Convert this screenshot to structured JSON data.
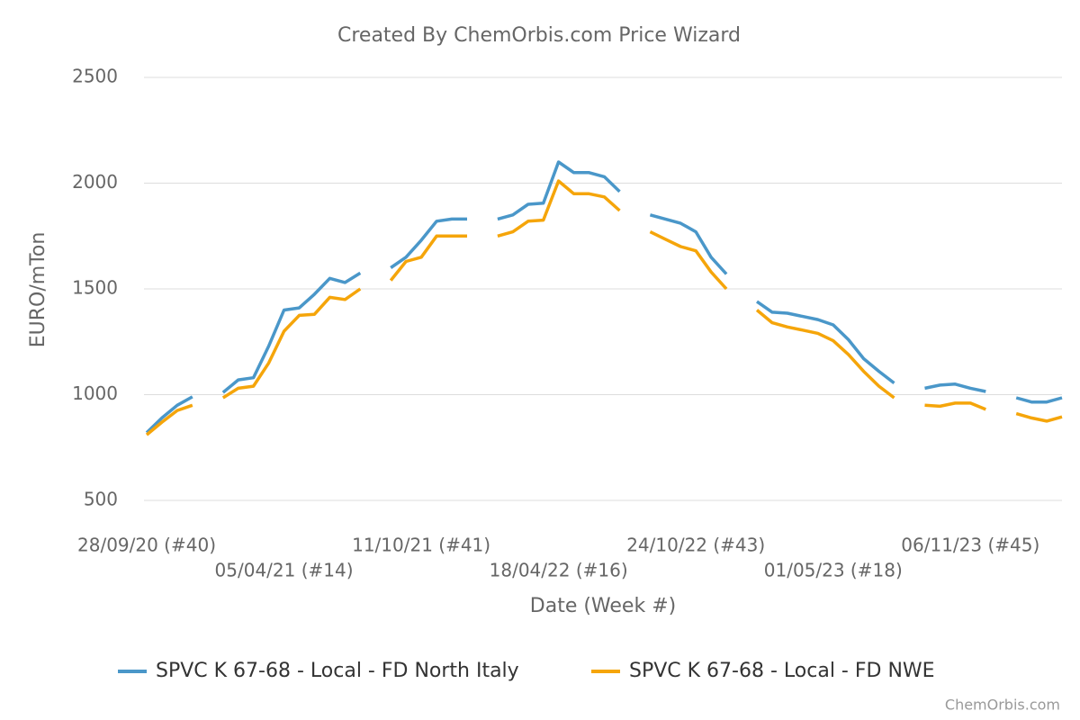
{
  "chart_data": {
    "type": "line",
    "title": "Created By ChemOrbis.com Price Wizard",
    "y_label": "EURO/mTon",
    "x_label": "Date (Week #)",
    "credit": "ChemOrbis.com",
    "categories": [
      "28/09/20 (#40)",
      null,
      null,
      null,
      null,
      null,
      null,
      null,
      null,
      "05/04/21 (#14)",
      null,
      null,
      null,
      null,
      null,
      null,
      null,
      null,
      "11/10/21 (#41)",
      null,
      null,
      null,
      null,
      null,
      null,
      null,
      null,
      "18/04/22 (#16)",
      null,
      null,
      null,
      null,
      null,
      null,
      null,
      null,
      "24/10/22 (#43)",
      null,
      null,
      null,
      null,
      null,
      null,
      null,
      null,
      "01/05/23 (#18)",
      null,
      null,
      null,
      null,
      null,
      null,
      null,
      null,
      "06/11/23 (#45)",
      null,
      null,
      null,
      null,
      null,
      null
    ],
    "series": [
      {
        "name": "SPVC K 67-68 - Local - FD North Italy",
        "color": "#4a97c9",
        "values": [
          820,
          890,
          950,
          990,
          null,
          1010,
          1070,
          1080,
          1230,
          1400,
          1410,
          1475,
          1550,
          1530,
          1575,
          null,
          1600,
          1650,
          1730,
          1820,
          1830,
          1830,
          null,
          1830,
          1850,
          1900,
          1905,
          2100,
          2050,
          2050,
          2030,
          1960,
          null,
          1850,
          1830,
          1810,
          1770,
          1650,
          1570,
          null,
          1440,
          1390,
          1385,
          1370,
          1355,
          1330,
          1260,
          1170,
          1110,
          1055,
          null,
          1030,
          1045,
          1050,
          1030,
          1015,
          null,
          985,
          965,
          965,
          985
        ]
      },
      {
        "name": "SPVC K 67-68 - Local - FD NWE",
        "color": "#f5a50a",
        "values": [
          810,
          870,
          925,
          950,
          null,
          985,
          1030,
          1040,
          1150,
          1300,
          1375,
          1380,
          1460,
          1450,
          1500,
          null,
          1540,
          1630,
          1650,
          1750,
          1750,
          1750,
          null,
          1750,
          1770,
          1820,
          1825,
          2010,
          1950,
          1950,
          1935,
          1870,
          null,
          1770,
          1735,
          1700,
          1680,
          1580,
          1500,
          null,
          1400,
          1340,
          1320,
          1305,
          1290,
          1255,
          1190,
          1110,
          1040,
          985,
          null,
          950,
          945,
          960,
          960,
          930,
          null,
          910,
          890,
          875,
          895
        ]
      }
    ],
    "ylim": [
      500,
      2500
    ],
    "yticks": [
      500,
      1000,
      1500,
      2000,
      2500
    ],
    "grid": true
  }
}
